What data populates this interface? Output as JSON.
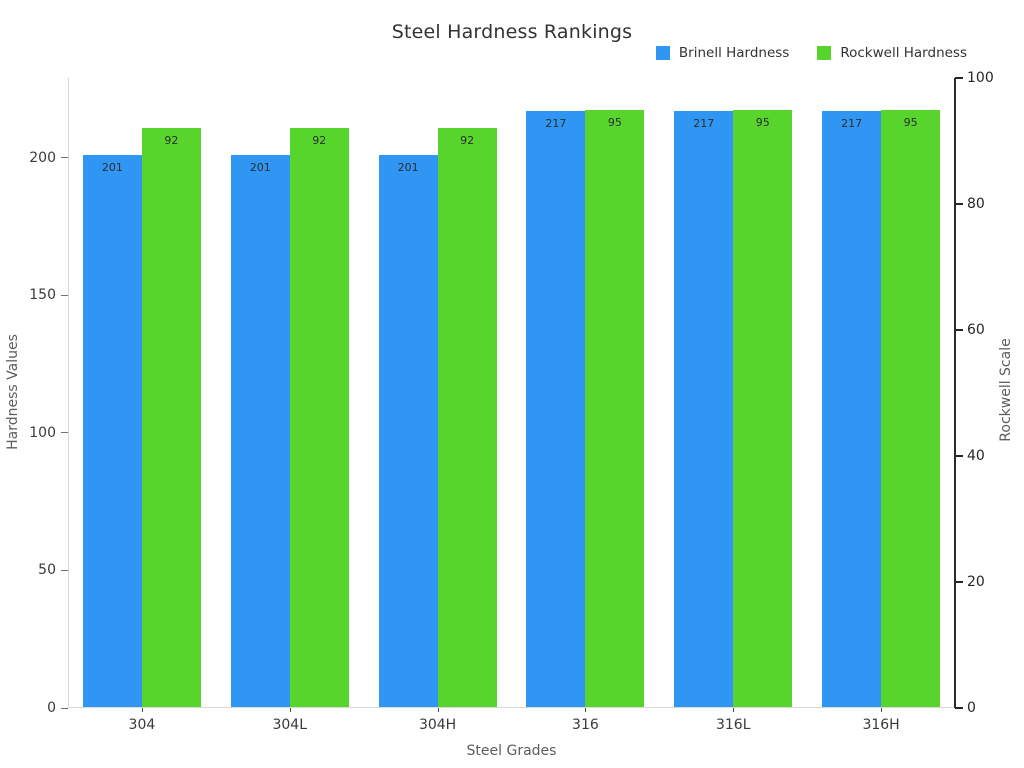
{
  "chart_data": {
    "type": "bar",
    "title": "Steel Hardness Rankings",
    "xlabel": "Steel Grades",
    "ylabel_left": "Hardness Values",
    "ylabel_right": "Rockwell Scale",
    "categories": [
      "304",
      "304L",
      "304H",
      "316",
      "316L",
      "316H"
    ],
    "series": [
      {
        "name": "Brinell Hardness",
        "axis": "left",
        "color": "#2f96f3",
        "values": [
          201,
          201,
          201,
          217,
          217,
          217
        ]
      },
      {
        "name": "Rockwell Hardness",
        "axis": "right",
        "color": "#58d52c",
        "values": [
          92,
          92,
          92,
          95,
          95,
          95
        ]
      }
    ],
    "left_axis": {
      "ticks": [
        0,
        50,
        100,
        150,
        200
      ],
      "ylim": [
        0,
        229
      ]
    },
    "right_axis": {
      "ticks": [
        0,
        20,
        40,
        60,
        80,
        100
      ],
      "ylim": [
        0,
        100
      ]
    },
    "grid": false,
    "legend_position": "top-right",
    "background_color": "#ffffff"
  }
}
